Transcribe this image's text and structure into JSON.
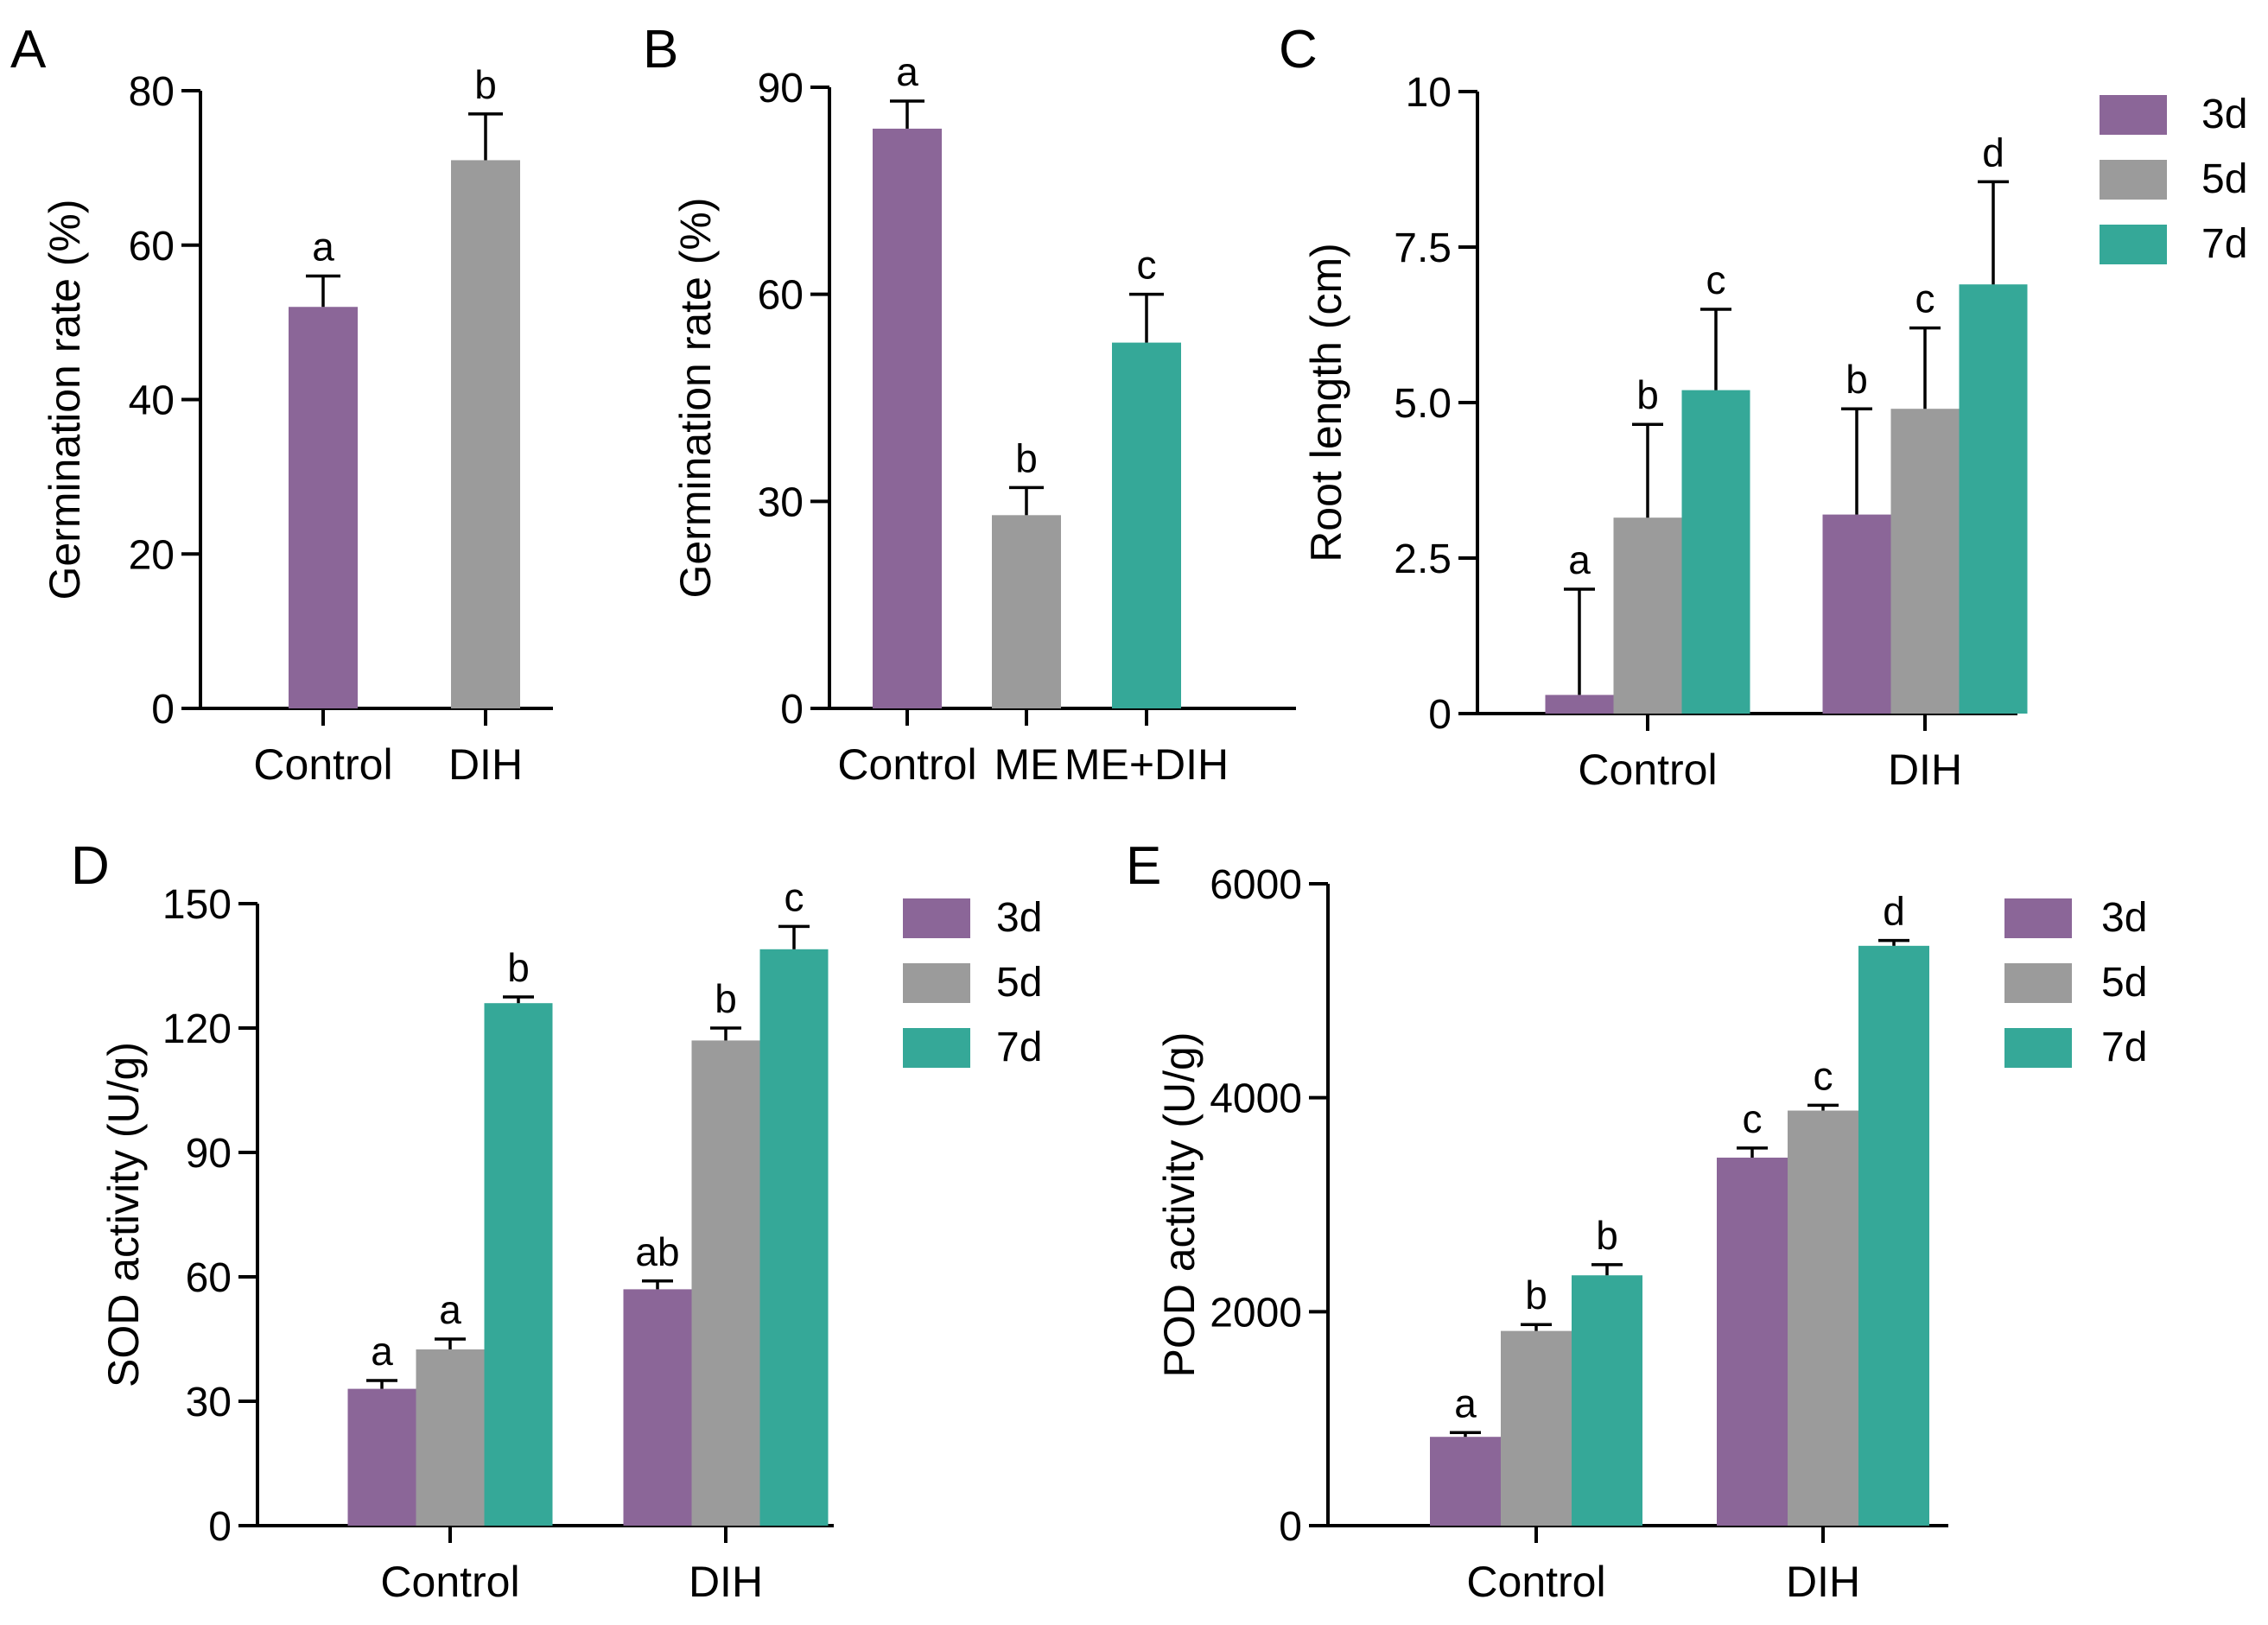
{
  "colors": {
    "d3": "#8B6698",
    "d5": "#9B9B9B",
    "d7": "#35A898"
  },
  "chart_data": [
    {
      "id": "A",
      "letter": "A",
      "type": "bar",
      "title": "",
      "xlabel": "",
      "ylabel": "Germination rate (%)",
      "ylim": [
        0,
        80
      ],
      "ticks": [
        0,
        20,
        40,
        60,
        80
      ],
      "tick_labels": [
        "0",
        "20",
        "40",
        "60",
        "80"
      ],
      "categories": [
        "Control",
        "DIH"
      ],
      "series": [
        {
          "name": "",
          "values": [
            52,
            71
          ],
          "errors": [
            4,
            6
          ],
          "colors": [
            "d3",
            "d5"
          ],
          "letters": [
            "a",
            "b"
          ]
        }
      ],
      "legend": []
    },
    {
      "id": "B",
      "letter": "B",
      "type": "bar",
      "title": "",
      "xlabel": "",
      "ylabel": "Germination rate (%)",
      "ylim": [
        0,
        90
      ],
      "ticks": [
        0,
        30,
        60,
        90
      ],
      "tick_labels": [
        "0",
        "30",
        "60",
        "90"
      ],
      "categories": [
        "Control",
        "ME",
        "ME+DIH"
      ],
      "series": [
        {
          "name": "",
          "values": [
            84,
            28,
            53
          ],
          "errors": [
            4,
            4,
            7
          ],
          "colors": [
            "d3",
            "d5",
            "d7"
          ],
          "letters": [
            "a",
            "b",
            "c"
          ]
        }
      ],
      "legend": []
    },
    {
      "id": "C",
      "letter": "C",
      "type": "bar",
      "title": "",
      "xlabel": "",
      "ylabel": "Root length (cm)",
      "ylim": [
        0,
        10
      ],
      "ticks": [
        0,
        2.5,
        5,
        7.5,
        10
      ],
      "tick_labels": [
        "0",
        "2.5",
        "5.0",
        "7.5",
        "10"
      ],
      "categories": [
        "Control",
        "DIH"
      ],
      "series": [
        {
          "name": "3d",
          "values": [
            0.3,
            3.2
          ],
          "errors": [
            1.7,
            1.7
          ],
          "colors": [
            "d3",
            "d3"
          ],
          "letters": [
            "a",
            "b"
          ]
        },
        {
          "name": "5d",
          "values": [
            3.15,
            4.9
          ],
          "errors": [
            1.5,
            1.3
          ],
          "colors": [
            "d5",
            "d5"
          ],
          "letters": [
            "b",
            "c"
          ]
        },
        {
          "name": "7d",
          "values": [
            5.2,
            6.9
          ],
          "errors": [
            1.3,
            1.65
          ],
          "colors": [
            "d7",
            "d7"
          ],
          "letters": [
            "c",
            "d"
          ]
        }
      ],
      "legend": [
        {
          "label": "3d",
          "color": "d3"
        },
        {
          "label": "5d",
          "color": "d5"
        },
        {
          "label": "7d",
          "color": "d7"
        }
      ]
    },
    {
      "id": "D",
      "letter": "D",
      "type": "bar",
      "title": "",
      "xlabel": "",
      "ylabel": "SOD activity (U/g)",
      "ylim": [
        0,
        150
      ],
      "ticks": [
        0,
        30,
        60,
        90,
        120,
        150
      ],
      "tick_labels": [
        "0",
        "30",
        "60",
        "90",
        "120",
        "150"
      ],
      "categories": [
        "Control",
        "DIH"
      ],
      "series": [
        {
          "name": "3d",
          "values": [
            33,
            57
          ],
          "errors": [
            2,
            2
          ],
          "colors": [
            "d3",
            "d3"
          ],
          "letters": [
            "a",
            "ab"
          ]
        },
        {
          "name": "5d",
          "values": [
            42.5,
            117
          ],
          "errors": [
            2.5,
            3
          ],
          "colors": [
            "d5",
            "d5"
          ],
          "letters": [
            "a",
            "b"
          ]
        },
        {
          "name": "7d",
          "values": [
            126,
            139
          ],
          "errors": [
            1.5,
            5.5
          ],
          "colors": [
            "d7",
            "d7"
          ],
          "letters": [
            "b",
            "c"
          ]
        }
      ],
      "legend": [
        {
          "label": "3d",
          "color": "d3"
        },
        {
          "label": "5d",
          "color": "d5"
        },
        {
          "label": "7d",
          "color": "d7"
        }
      ]
    },
    {
      "id": "E",
      "letter": "E",
      "type": "bar",
      "title": "",
      "xlabel": "",
      "ylabel": "POD activity (U/g)",
      "ylim": [
        0,
        6000
      ],
      "ticks": [
        0,
        2000,
        4000,
        6000
      ],
      "tick_labels": [
        "0",
        "2000",
        "4000",
        "6000"
      ],
      "categories": [
        "Control",
        "DIH"
      ],
      "series": [
        {
          "name": "3d",
          "values": [
            830,
            3440
          ],
          "errors": [
            40,
            90
          ],
          "colors": [
            "d3",
            "d3"
          ],
          "letters": [
            "a",
            "c"
          ]
        },
        {
          "name": "5d",
          "values": [
            1820,
            3880
          ],
          "errors": [
            60,
            50
          ],
          "colors": [
            "d5",
            "d5"
          ],
          "letters": [
            "b",
            "c"
          ]
        },
        {
          "name": "7d",
          "values": [
            2340,
            5420
          ],
          "errors": [
            100,
            50
          ],
          "colors": [
            "d7",
            "d7"
          ],
          "letters": [
            "b",
            "d"
          ]
        }
      ],
      "legend": [
        {
          "label": "3d",
          "color": "d3"
        },
        {
          "label": "5d",
          "color": "d5"
        },
        {
          "label": "7d",
          "color": "d7"
        }
      ]
    }
  ]
}
